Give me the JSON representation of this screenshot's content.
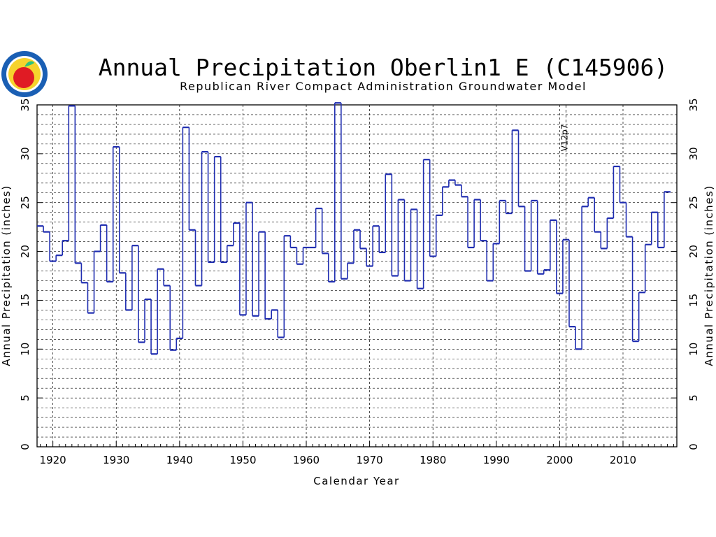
{
  "chart_data": {
    "type": "line",
    "step": true,
    "title": "Annual Precipitation Oberlin1 E (C145906)",
    "subtitle": "Republican River Compact Administration Groundwater Model",
    "xlabel": "Calendar Year",
    "ylabel_left": "Annual Precipitation (inches)",
    "ylabel_right": "Annual Precipitation (inches)",
    "xlim": [
      1917.5,
      2018.5
    ],
    "ylim": [
      0,
      35
    ],
    "x_ticks": [
      1920,
      1930,
      1940,
      1950,
      1960,
      1970,
      1980,
      1990,
      2000,
      2010
    ],
    "y_ticks": [
      0,
      5,
      10,
      15,
      20,
      25,
      30,
      35
    ],
    "grid": true,
    "annotation": {
      "label": "V12p7",
      "x": 2001
    },
    "colors": {
      "line": "#1f2db0"
    },
    "start_year": 1918,
    "values": [
      22.6,
      22.0,
      19.0,
      19.6,
      21.1,
      34.9,
      18.8,
      16.8,
      13.7,
      20.0,
      22.7,
      16.9,
      30.7,
      17.8,
      14.0,
      20.6,
      10.7,
      15.1,
      9.5,
      18.2,
      16.5,
      9.9,
      11.1,
      32.7,
      22.2,
      16.5,
      30.2,
      18.9,
      29.7,
      18.9,
      20.6,
      22.9,
      13.5,
      25.0,
      13.4,
      22.0,
      13.1,
      14.0,
      11.2,
      21.6,
      20.4,
      18.7,
      20.4,
      20.4,
      24.4,
      19.8,
      16.9,
      35.2,
      17.2,
      18.8,
      22.2,
      20.3,
      18.5,
      22.6,
      19.9,
      27.9,
      17.5,
      25.3,
      17.0,
      24.3,
      16.2,
      29.4,
      19.5,
      23.7,
      26.6,
      27.3,
      26.8,
      25.6,
      20.4,
      25.3,
      21.1,
      17.0,
      20.8,
      25.2,
      23.9,
      32.4,
      24.6,
      18.0,
      25.2,
      17.7,
      18.1,
      23.2,
      15.7,
      21.2,
      12.3,
      10.0,
      24.6,
      25.5,
      22.0,
      20.3,
      23.4,
      28.7,
      25.0,
      21.5,
      10.8,
      15.8,
      20.7,
      24.0,
      20.4,
      26.1
    ]
  },
  "logo": {
    "icon": "apple-seal-logo",
    "colors": {
      "ring": "#1a5fb4",
      "apple": "#e01b24",
      "leaf": "#2ec27e",
      "inner": "#f6d32d"
    }
  }
}
